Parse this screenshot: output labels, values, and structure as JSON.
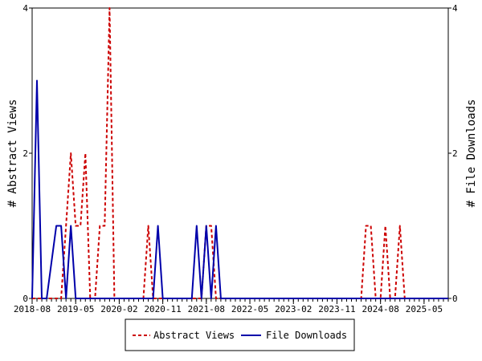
{
  "chart_data": {
    "type": "line",
    "x_tick_labels": [
      "2018-08",
      "2019-05",
      "2020-02",
      "2020-11",
      "2021-08",
      "2022-05",
      "2023-02",
      "2023-11",
      "2024-08",
      "2025-05"
    ],
    "x_range_months": [
      "2018-08",
      "2025-10"
    ],
    "ylabel_left": "# Abstract Views",
    "ylabel_right": "# File Downloads",
    "ylim_left": [
      0,
      4
    ],
    "ylim_right": [
      0,
      4
    ],
    "y_ticks_left": [
      "0",
      "2",
      "4"
    ],
    "y_ticks_right": [
      "0",
      "2",
      "4"
    ],
    "grid": false,
    "legend_position": "bottom",
    "series": [
      {
        "name": "Abstract Views",
        "axis": "left",
        "color": "#cc0000",
        "dash": "dashed",
        "points": [
          [
            "2018-08",
            0
          ],
          [
            "2019-02",
            0
          ],
          [
            "2019-03",
            1
          ],
          [
            "2019-04",
            2
          ],
          [
            "2019-05",
            1
          ],
          [
            "2019-06",
            1
          ],
          [
            "2019-07",
            2
          ],
          [
            "2019-08",
            0
          ],
          [
            "2019-09",
            0
          ],
          [
            "2019-10",
            1
          ],
          [
            "2019-11",
            1
          ],
          [
            "2019-12",
            4
          ],
          [
            "2020-01",
            0
          ],
          [
            "2020-07",
            0
          ],
          [
            "2020-08",
            1
          ],
          [
            "2020-09",
            0
          ],
          [
            "2021-07",
            0
          ],
          [
            "2021-08",
            1
          ],
          [
            "2021-09",
            1
          ],
          [
            "2021-10",
            0
          ],
          [
            "2024-04",
            0
          ],
          [
            "2024-05",
            1
          ],
          [
            "2024-06",
            1
          ],
          [
            "2024-07",
            0
          ],
          [
            "2024-08",
            0
          ],
          [
            "2024-09",
            1
          ],
          [
            "2024-10",
            0
          ],
          [
            "2024-11",
            0
          ],
          [
            "2024-12",
            1
          ],
          [
            "2025-01",
            0
          ],
          [
            "2025-10",
            0
          ]
        ]
      },
      {
        "name": "File Downloads",
        "axis": "right",
        "color": "#0000aa",
        "dash": "solid",
        "points": [
          [
            "2018-08",
            0
          ],
          [
            "2018-09",
            3
          ],
          [
            "2018-10",
            0
          ],
          [
            "2018-11",
            0
          ],
          [
            "2019-01",
            1
          ],
          [
            "2019-02",
            1
          ],
          [
            "2019-03",
            0
          ],
          [
            "2019-04",
            1
          ],
          [
            "2019-05",
            0
          ],
          [
            "2020-09",
            0
          ],
          [
            "2020-10",
            1
          ],
          [
            "2020-11",
            0
          ],
          [
            "2021-05",
            0
          ],
          [
            "2021-06",
            1
          ],
          [
            "2021-07",
            0
          ],
          [
            "2021-08",
            1
          ],
          [
            "2021-09",
            0
          ],
          [
            "2021-10",
            1
          ],
          [
            "2021-11",
            0
          ],
          [
            "2025-10",
            0
          ]
        ]
      }
    ]
  }
}
